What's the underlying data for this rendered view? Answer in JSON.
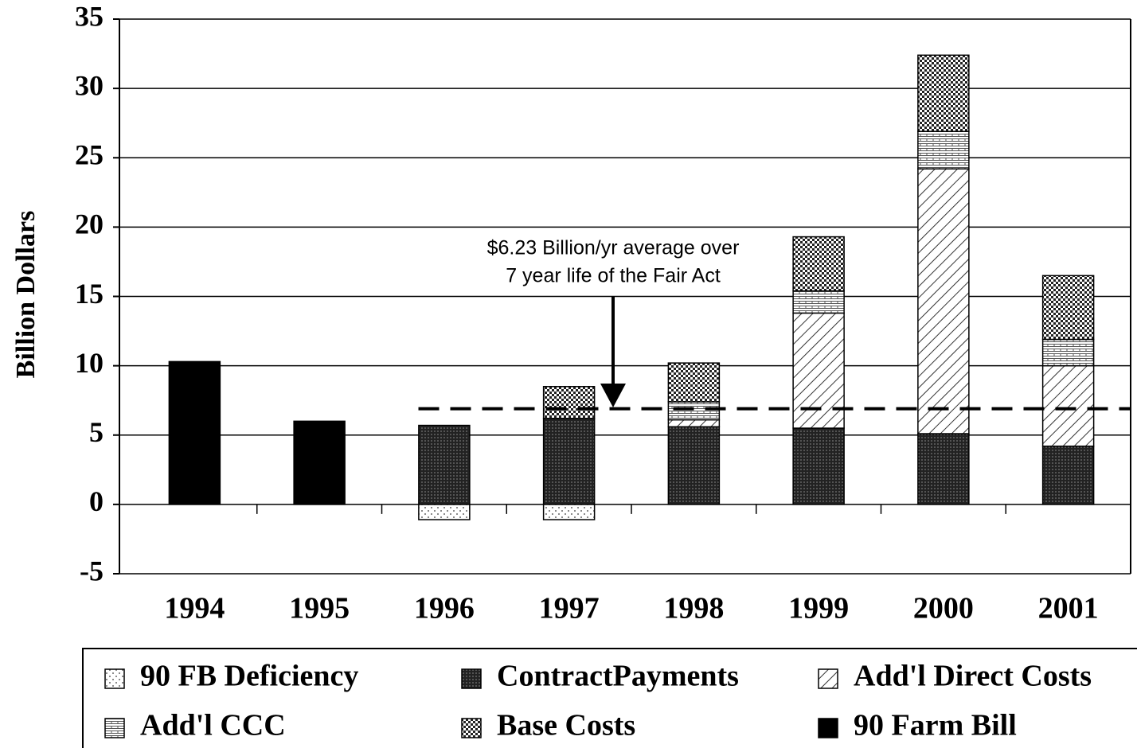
{
  "chart_data": {
    "type": "stacked_bar",
    "ylabel": "Billion Dollars",
    "categories": [
      "1994",
      "1995",
      "1996",
      "1997",
      "1998",
      "1999",
      "2000",
      "2001"
    ],
    "series": [
      {
        "name": "90 FB Deficiency",
        "color": "#ffffff",
        "pattern": "dots-light",
        "values": [
          null,
          null,
          -1.1,
          -1.1,
          null,
          null,
          null,
          null
        ]
      },
      {
        "name": "ContractPayments",
        "color": "#3a3a3a",
        "pattern": "dense",
        "values": [
          null,
          null,
          5.7,
          6.2,
          5.6,
          5.5,
          5.1,
          4.2
        ]
      },
      {
        "name": "Add'l Direct Costs",
        "color": "#ffffff",
        "pattern": "hatch",
        "values": [
          null,
          null,
          null,
          null,
          0.5,
          8.3,
          19.1,
          5.8
        ]
      },
      {
        "name": "Add'l CCC",
        "color": "#ffffff",
        "pattern": "brick",
        "values": [
          null,
          null,
          null,
          null,
          1.3,
          1.6,
          2.7,
          1.9
        ]
      },
      {
        "name": "Base Costs",
        "color": "#ffffff",
        "pattern": "checker",
        "values": [
          null,
          null,
          null,
          2.3,
          2.8,
          3.9,
          5.5,
          4.6
        ]
      },
      {
        "name": "90 Farm Bill",
        "color": "#000000",
        "pattern": "solid",
        "values": [
          10.3,
          6.0,
          null,
          null,
          null,
          null,
          null,
          null
        ]
      }
    ],
    "reference_line": 6.9,
    "annotation": [
      "$6.23 Billion/yr average over",
      "7 year life of the Fair Act"
    ],
    "ylim": [
      -5,
      35
    ],
    "yticks": [
      -5,
      0,
      5,
      10,
      15,
      20,
      25,
      30,
      35
    ],
    "grid": true
  }
}
